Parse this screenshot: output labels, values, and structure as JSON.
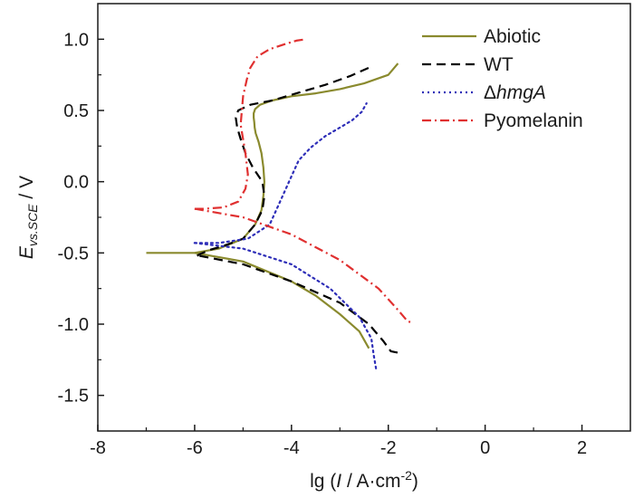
{
  "chart_data": {
    "type": "line",
    "xlabel": {
      "prefix": "lg (",
      "italic": "I",
      "rest": " / A·cm",
      "sup": "-2",
      "suffix": ")"
    },
    "ylabel": {
      "main": "E",
      "sub": "vs.SCE",
      "rest": " / V"
    },
    "xlim": [
      -8,
      3
    ],
    "ylim": [
      -1.75,
      1.25
    ],
    "xticks": [
      -8,
      -6,
      -4,
      -2,
      0,
      2
    ],
    "xtick_labels": [
      "-8",
      "-6",
      "-4",
      "-2",
      "0",
      "2"
    ],
    "yticks": [
      -1.5,
      -1.0,
      -0.5,
      0.0,
      0.5,
      1.0
    ],
    "ytick_labels": [
      "-1.5",
      "-1.0",
      "-0.5",
      "0.0",
      "0.5",
      "1.0"
    ],
    "grid": false,
    "legend_position": "top-right",
    "series": [
      {
        "name": "Abiotic",
        "color": "#8a8a2e",
        "style": "solid",
        "x": [
          -7.0,
          -6.0,
          -5.5,
          -5.0,
          -4.75,
          -4.62,
          -4.58,
          -4.56,
          -4.58,
          -4.62,
          -4.68,
          -4.74,
          -4.76,
          -4.77,
          -4.78,
          -4.78,
          -4.75,
          -4.65,
          -4.4,
          -4.0,
          -3.5,
          -3.0,
          -2.5,
          -2.0,
          -1.8
        ],
        "y": [
          -0.5,
          -0.5,
          -0.47,
          -0.4,
          -0.3,
          -0.2,
          -0.1,
          0.0,
          0.1,
          0.2,
          0.28,
          0.34,
          0.38,
          0.42,
          0.45,
          0.48,
          0.51,
          0.54,
          0.57,
          0.6,
          0.62,
          0.65,
          0.69,
          0.75,
          0.83
        ],
        "x_cathodic": [
          -6.0,
          -5.0,
          -4.0,
          -3.5,
          -3.0,
          -2.6,
          -2.4
        ],
        "y_cathodic": [
          -0.5,
          -0.56,
          -0.7,
          -0.8,
          -0.93,
          -1.05,
          -1.17
        ]
      },
      {
        "name": "WT",
        "color": "#000000",
        "style": "dashed",
        "x": [
          -5.95,
          -5.9,
          -5.7,
          -5.4,
          -5.0,
          -4.75,
          -4.6,
          -4.56,
          -4.6,
          -4.8,
          -4.95,
          -5.05,
          -5.12,
          -5.15,
          -5.1,
          -4.85,
          -4.4,
          -3.9,
          -3.3,
          -2.8,
          -2.4
        ],
        "y": [
          -0.52,
          -0.51,
          -0.48,
          -0.45,
          -0.4,
          -0.3,
          -0.2,
          -0.1,
          0.0,
          0.1,
          0.2,
          0.3,
          0.38,
          0.45,
          0.5,
          0.54,
          0.57,
          0.62,
          0.68,
          0.74,
          0.8
        ],
        "x_cathodic": [
          -5.9,
          -5.0,
          -4.0,
          -3.0,
          -2.4,
          -2.1,
          -1.95,
          -1.8
        ],
        "y_cathodic": [
          -0.52,
          -0.58,
          -0.7,
          -0.85,
          -1.0,
          -1.12,
          -1.19,
          -1.2
        ]
      },
      {
        "name": "ΔhmgA",
        "color": "#2e2eb8",
        "style": "dotted",
        "x": [
          -6.0,
          -5.5,
          -4.9,
          -4.45,
          -4.25,
          -4.05,
          -3.85,
          -3.6,
          -3.3,
          -3.0,
          -2.75,
          -2.55,
          -2.45
        ],
        "y": [
          -0.43,
          -0.43,
          -0.4,
          -0.3,
          -0.15,
          0.0,
          0.15,
          0.24,
          0.32,
          0.38,
          0.43,
          0.49,
          0.55
        ],
        "x_cathodic": [
          -6.0,
          -5.0,
          -4.0,
          -3.2,
          -2.6,
          -2.35,
          -2.3,
          -2.25
        ],
        "y_cathodic": [
          -0.43,
          -0.47,
          -0.58,
          -0.75,
          -0.95,
          -1.1,
          -1.22,
          -1.32
        ]
      },
      {
        "name": "Pyomelanin",
        "color": "#e03030",
        "style": "dashdot",
        "x": [
          -6.0,
          -5.8,
          -5.4,
          -5.1,
          -4.95,
          -4.9,
          -4.95,
          -5.05,
          -5.0,
          -4.92,
          -4.85,
          -4.7,
          -4.45,
          -4.1,
          -3.9,
          -3.7
        ],
        "y": [
          -0.19,
          -0.19,
          -0.18,
          -0.14,
          -0.05,
          0.05,
          0.2,
          0.4,
          0.6,
          0.72,
          0.8,
          0.88,
          0.93,
          0.97,
          0.99,
          1.0
        ],
        "x_cathodic": [
          -6.0,
          -5.0,
          -4.0,
          -3.0,
          -2.2,
          -1.8,
          -1.6,
          -1.5
        ],
        "y_cathodic": [
          -0.19,
          -0.25,
          -0.37,
          -0.55,
          -0.75,
          -0.9,
          -0.98,
          -0.99
        ]
      }
    ]
  }
}
